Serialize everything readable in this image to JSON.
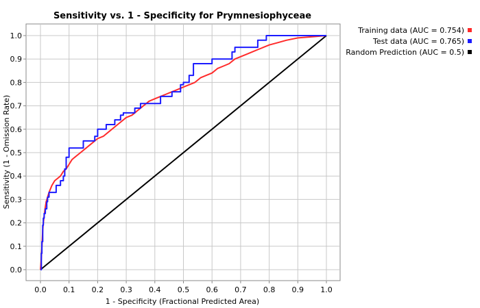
{
  "chart_data": {
    "type": "line",
    "title": "Sensitivity vs. 1 - Specificity for Prymnesiophyceae",
    "xlabel": "1 - Specificity  (Fractional Predicted Area)",
    "ylabel": "Sensitivity  (1 - Omission Rate)",
    "xlim": [
      0,
      1
    ],
    "ylim": [
      0,
      1
    ],
    "xticks": [
      "0.0",
      "0.1",
      "0.2",
      "0.3",
      "0.4",
      "0.5",
      "0.6",
      "0.7",
      "0.8",
      "0.9",
      "1.0"
    ],
    "yticks": [
      "0.0",
      "0.1",
      "0.2",
      "0.3",
      "0.4",
      "0.5",
      "0.6",
      "0.7",
      "0.8",
      "0.9",
      "1.0"
    ],
    "grid": true,
    "legend_position": "top-right, outside plot",
    "series": [
      {
        "name": "Training data (AUC = 0.754)",
        "color": "#ff2a2a",
        "step": false,
        "x": [
          0,
          0.003,
          0.006,
          0.008,
          0.01,
          0.013,
          0.016,
          0.02,
          0.025,
          0.03,
          0.04,
          0.05,
          0.06,
          0.07,
          0.08,
          0.09,
          0.1,
          0.11,
          0.12,
          0.13,
          0.14,
          0.15,
          0.16,
          0.17,
          0.18,
          0.19,
          0.2,
          0.22,
          0.24,
          0.26,
          0.28,
          0.3,
          0.32,
          0.34,
          0.36,
          0.38,
          0.4,
          0.42,
          0.44,
          0.46,
          0.48,
          0.5,
          0.52,
          0.54,
          0.56,
          0.58,
          0.6,
          0.62,
          0.64,
          0.66,
          0.68,
          0.7,
          0.72,
          0.74,
          0.76,
          0.78,
          0.8,
          0.83,
          0.86,
          0.9,
          0.95,
          1.0
        ],
        "y": [
          0,
          0.05,
          0.12,
          0.17,
          0.2,
          0.23,
          0.26,
          0.29,
          0.31,
          0.33,
          0.36,
          0.38,
          0.39,
          0.4,
          0.42,
          0.43,
          0.45,
          0.47,
          0.48,
          0.49,
          0.5,
          0.51,
          0.52,
          0.53,
          0.54,
          0.55,
          0.56,
          0.57,
          0.59,
          0.61,
          0.63,
          0.65,
          0.66,
          0.68,
          0.7,
          0.72,
          0.73,
          0.74,
          0.75,
          0.76,
          0.77,
          0.78,
          0.79,
          0.8,
          0.82,
          0.83,
          0.84,
          0.86,
          0.87,
          0.88,
          0.9,
          0.91,
          0.92,
          0.93,
          0.94,
          0.95,
          0.96,
          0.97,
          0.98,
          0.99,
          0.995,
          1.0
        ]
      },
      {
        "name": "Test data (AUC = 0.765)",
        "color": "#1a1aff",
        "step": true,
        "x": [
          0,
          0.003,
          0.005,
          0.008,
          0.01,
          0.013,
          0.017,
          0.022,
          0.025,
          0.03,
          0.055,
          0.07,
          0.08,
          0.085,
          0.09,
          0.1,
          0.13,
          0.15,
          0.19,
          0.2,
          0.23,
          0.26,
          0.28,
          0.29,
          0.33,
          0.35,
          0.37,
          0.39,
          0.42,
          0.46,
          0.49,
          0.5,
          0.52,
          0.535,
          0.56,
          0.6,
          0.67,
          0.68,
          0.71,
          0.76,
          0.79,
          0.82,
          1.0
        ],
        "y": [
          0,
          0.07,
          0.12,
          0.19,
          0.22,
          0.24,
          0.26,
          0.29,
          0.31,
          0.33,
          0.36,
          0.38,
          0.4,
          0.43,
          0.48,
          0.52,
          0.52,
          0.55,
          0.57,
          0.6,
          0.62,
          0.64,
          0.66,
          0.67,
          0.69,
          0.71,
          0.71,
          0.71,
          0.74,
          0.76,
          0.79,
          0.8,
          0.83,
          0.88,
          0.88,
          0.9,
          0.93,
          0.95,
          0.95,
          0.98,
          1.0,
          1.0,
          1.0
        ]
      },
      {
        "name": "Random Prediction (AUC = 0.5)",
        "color": "#000000",
        "step": false,
        "x": [
          0,
          1
        ],
        "y": [
          0,
          1
        ]
      }
    ]
  }
}
